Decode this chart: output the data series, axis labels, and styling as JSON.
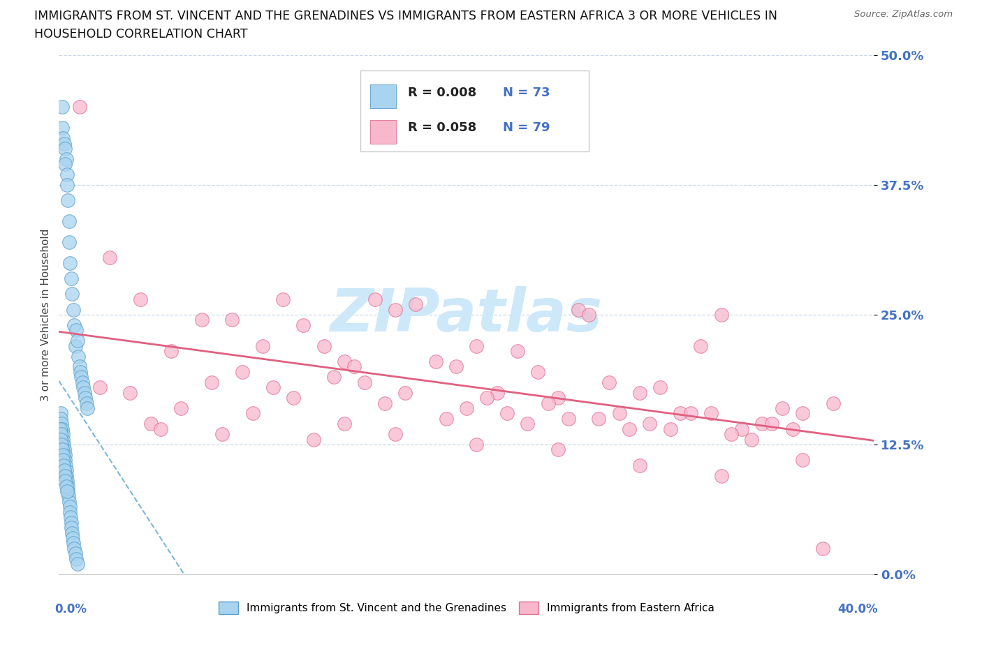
{
  "title_line1": "IMMIGRANTS FROM ST. VINCENT AND THE GRENADINES VS IMMIGRANTS FROM EASTERN AFRICA 3 OR MORE VEHICLES IN",
  "title_line2": "HOUSEHOLD CORRELATION CHART",
  "source_text": "Source: ZipAtlas.com",
  "ytick_values": [
    0.0,
    12.5,
    25.0,
    37.5,
    50.0
  ],
  "color_blue_fill": "#a8d4f0",
  "color_blue_edge": "#5b9ec9",
  "color_pink_fill": "#f7b8ce",
  "color_pink_edge": "#e07090",
  "color_blue_line": "#7ab8d8",
  "color_pink_line": "#e06080",
  "watermark_color": "#cde8f8",
  "background_color": "#ffffff",
  "grid_color": "#c8d8e8",
  "legend_blue_fill": "#a8d4f0",
  "legend_pink_fill": "#f7b8ce",
  "text_blue": "#4472c4",
  "text_dark": "#222222",
  "blue_x": [
    0.15,
    0.15,
    0.2,
    0.25,
    0.3,
    0.35,
    0.3,
    0.4,
    0.4,
    0.45,
    0.5,
    0.5,
    0.55,
    0.6,
    0.65,
    0.7,
    0.75,
    0.8,
    0.85,
    0.9,
    0.95,
    1.0,
    1.05,
    1.1,
    1.15,
    1.2,
    1.25,
    1.3,
    1.35,
    1.4,
    0.1,
    0.1,
    0.12,
    0.15,
    0.18,
    0.2,
    0.22,
    0.25,
    0.28,
    0.3,
    0.32,
    0.35,
    0.38,
    0.4,
    0.42,
    0.45,
    0.48,
    0.5,
    0.52,
    0.55,
    0.58,
    0.6,
    0.62,
    0.65,
    0.68,
    0.7,
    0.75,
    0.8,
    0.85,
    0.9,
    0.05,
    0.08,
    0.1,
    0.12,
    0.15,
    0.18,
    0.2,
    0.22,
    0.25,
    0.28,
    0.3,
    0.35,
    0.4
  ],
  "blue_y": [
    45.0,
    43.0,
    42.0,
    41.5,
    41.0,
    40.0,
    39.5,
    38.5,
    37.5,
    36.0,
    34.0,
    32.0,
    30.0,
    28.5,
    27.0,
    25.5,
    24.0,
    22.0,
    23.5,
    22.5,
    21.0,
    20.0,
    19.5,
    19.0,
    18.5,
    18.0,
    17.5,
    17.0,
    16.5,
    16.0,
    15.5,
    15.0,
    14.5,
    14.0,
    13.5,
    13.0,
    12.5,
    12.0,
    11.5,
    11.0,
    10.5,
    10.0,
    9.5,
    9.0,
    8.5,
    8.0,
    7.5,
    7.0,
    6.5,
    6.0,
    5.5,
    5.0,
    4.5,
    4.0,
    3.5,
    3.0,
    2.5,
    2.0,
    1.5,
    1.0,
    14.0,
    13.5,
    13.0,
    12.5,
    12.0,
    11.5,
    11.0,
    10.5,
    10.0,
    9.5,
    9.0,
    8.5,
    8.0
  ],
  "pink_x": [
    1.0,
    2.5,
    4.0,
    5.5,
    7.0,
    8.5,
    10.0,
    11.0,
    12.0,
    13.0,
    14.0,
    14.5,
    15.5,
    16.5,
    17.5,
    18.5,
    19.5,
    20.5,
    21.5,
    22.5,
    23.5,
    24.5,
    25.5,
    26.5,
    27.5,
    28.5,
    29.5,
    30.5,
    31.5,
    32.5,
    33.5,
    34.5,
    35.5,
    36.5,
    37.5,
    38.0,
    2.0,
    3.5,
    6.0,
    7.5,
    9.0,
    10.5,
    11.5,
    13.5,
    15.0,
    16.0,
    17.0,
    19.0,
    20.0,
    21.0,
    22.0,
    23.0,
    24.0,
    25.0,
    26.0,
    27.0,
    28.0,
    29.0,
    30.0,
    31.0,
    32.0,
    33.0,
    34.0,
    35.0,
    36.0,
    4.5,
    8.0,
    12.5,
    16.5,
    20.5,
    24.5,
    28.5,
    32.5,
    36.5,
    5.0,
    9.5,
    14.0
  ],
  "pink_y": [
    45.0,
    30.5,
    26.5,
    21.5,
    24.5,
    24.5,
    22.0,
    26.5,
    24.0,
    22.0,
    20.5,
    20.0,
    26.5,
    25.5,
    26.0,
    20.5,
    20.0,
    22.0,
    17.5,
    21.5,
    19.5,
    17.0,
    25.5,
    15.0,
    15.5,
    17.5,
    18.0,
    15.5,
    22.0,
    25.0,
    14.0,
    14.5,
    16.0,
    15.5,
    2.5,
    16.5,
    18.0,
    17.5,
    16.0,
    18.5,
    19.5,
    18.0,
    17.0,
    19.0,
    18.5,
    16.5,
    17.5,
    15.0,
    16.0,
    17.0,
    15.5,
    14.5,
    16.5,
    15.0,
    25.0,
    18.5,
    14.0,
    14.5,
    14.0,
    15.5,
    15.5,
    13.5,
    13.0,
    14.5,
    14.0,
    14.5,
    13.5,
    13.0,
    13.5,
    12.5,
    12.0,
    10.5,
    9.5,
    11.0,
    14.0,
    15.5,
    14.5
  ]
}
